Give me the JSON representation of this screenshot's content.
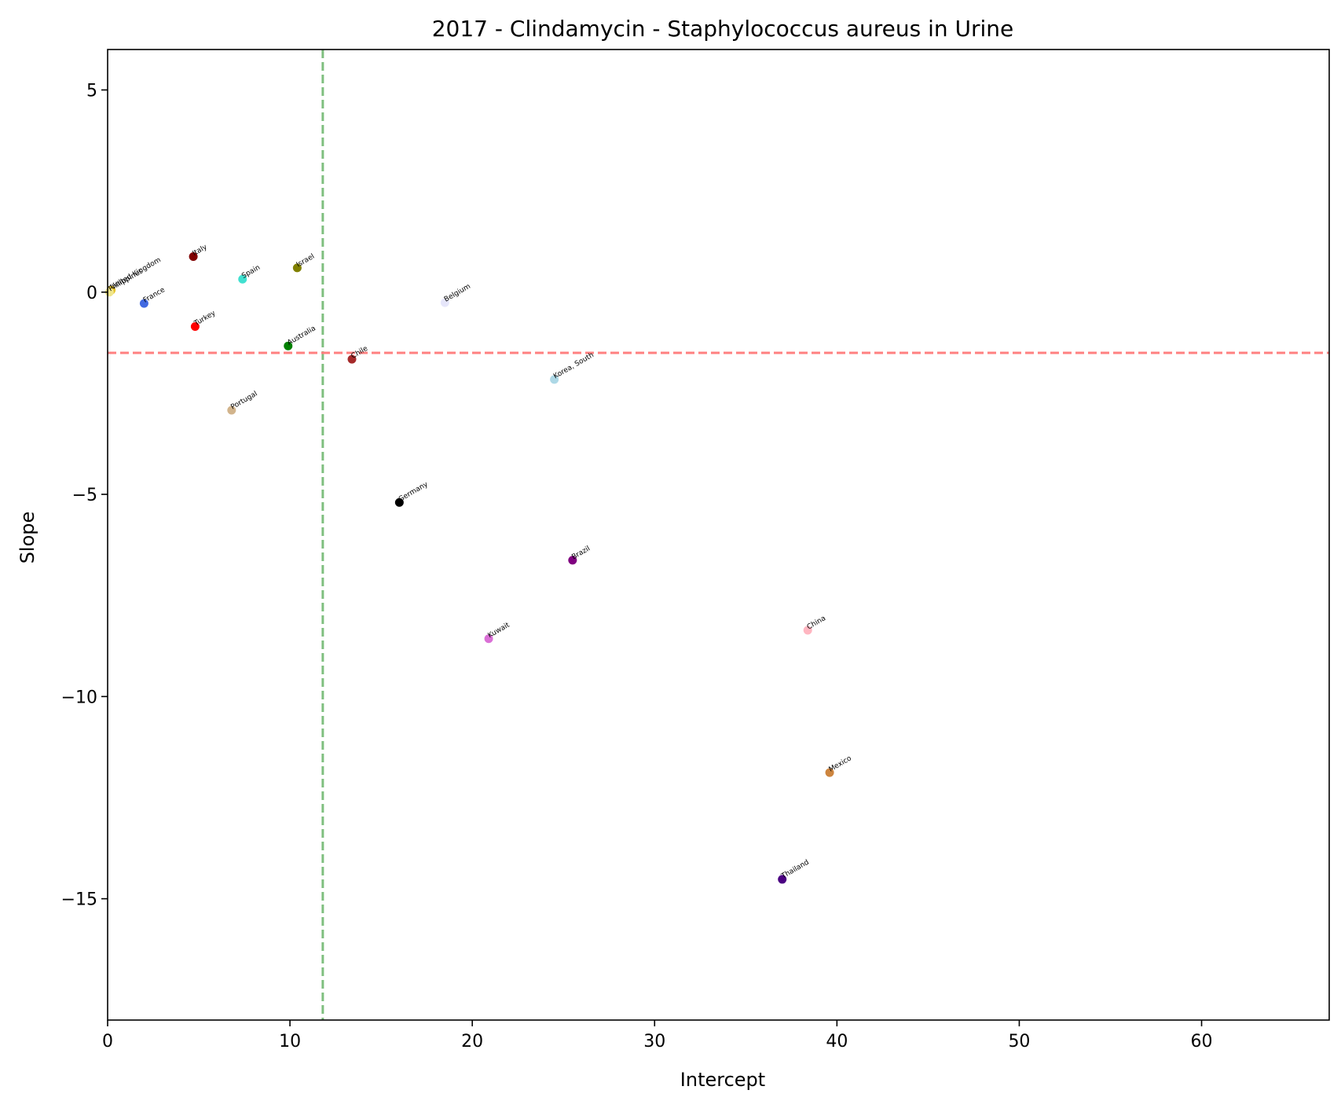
{
  "chart_data": {
    "type": "scatter",
    "title": "2017 - Clindamycin - Staphylococcus aureus in Urine",
    "xlabel": "Intercept",
    "ylabel": "Slope",
    "xlim": [
      0,
      67
    ],
    "ylim": [
      -18,
      6
    ],
    "xticks": [
      0,
      10,
      20,
      30,
      40,
      50,
      60
    ],
    "xtick_labels": [
      "0",
      "10",
      "20",
      "30",
      "40",
      "50",
      "60"
    ],
    "yticks": [
      5,
      0,
      -5,
      -10,
      -15
    ],
    "ytick_labels": [
      "5",
      "0",
      "−10",
      "−15"
    ],
    "ytick_labels_full": [
      "5",
      "0",
      "−5",
      "−10",
      "−15"
    ],
    "grid": false,
    "reference_lines": [
      {
        "orientation": "vertical",
        "value": 11.8,
        "color": "#7fbf7f",
        "style": "dashed"
      },
      {
        "orientation": "horizontal",
        "value": -1.5,
        "color": "#ff8080",
        "style": "dashed"
      }
    ],
    "points": [
      {
        "label": "United Kingdom",
        "x": 0.2,
        "y": 0.05,
        "color": "#e6c229"
      },
      {
        "label": "Philippines",
        "x": 0.1,
        "y": 0.0,
        "color": "#f0e68c"
      },
      {
        "label": "France",
        "x": 2.0,
        "y": -0.28,
        "color": "#4169e1"
      },
      {
        "label": "Italy",
        "x": 4.7,
        "y": 0.88,
        "color": "#800000"
      },
      {
        "label": "Turkey",
        "x": 4.8,
        "y": -0.85,
        "color": "#ff0000"
      },
      {
        "label": "Spain",
        "x": 7.4,
        "y": 0.32,
        "color": "#40e0d0"
      },
      {
        "label": "Portugal",
        "x": 6.8,
        "y": -2.92,
        "color": "#d2b48c"
      },
      {
        "label": "Israel",
        "x": 10.4,
        "y": 0.6,
        "color": "#808000"
      },
      {
        "label": "Australia",
        "x": 9.9,
        "y": -1.33,
        "color": "#008000"
      },
      {
        "label": "Chile",
        "x": 13.4,
        "y": -1.66,
        "color": "#a52a2a"
      },
      {
        "label": "Belgium",
        "x": 18.5,
        "y": -0.26,
        "color": "#e6e6fa"
      },
      {
        "label": "Korea, South",
        "x": 24.5,
        "y": -2.16,
        "color": "#add8e6"
      },
      {
        "label": "Germany",
        "x": 16.0,
        "y": -5.2,
        "color": "#000000"
      },
      {
        "label": "Brazil",
        "x": 25.5,
        "y": -6.63,
        "color": "#800080"
      },
      {
        "label": "Kuwait",
        "x": 20.9,
        "y": -8.57,
        "color": "#da70d6"
      },
      {
        "label": "China",
        "x": 38.4,
        "y": -8.36,
        "color": "#ffb6c1"
      },
      {
        "label": "Mexico",
        "x": 39.6,
        "y": -11.88,
        "color": "#cd853f"
      },
      {
        "label": "Thailand",
        "x": 37.0,
        "y": -14.52,
        "color": "#4b0082"
      }
    ]
  }
}
